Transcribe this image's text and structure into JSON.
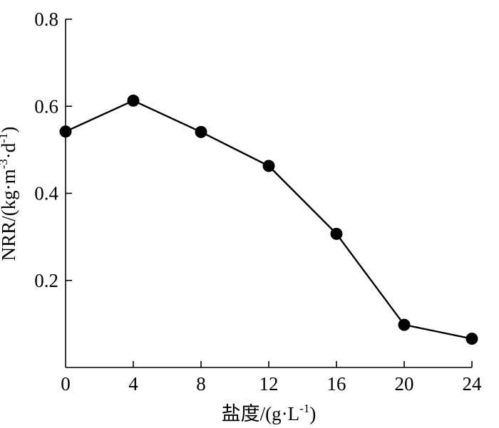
{
  "chart_data": {
    "type": "line",
    "title": "",
    "xlabel": {
      "prefix": "盐度/(g·L",
      "sup": "-1",
      "suffix": ")"
    },
    "ylabel": {
      "part1": "NRR/(kg·m",
      "sup1": "-3",
      "part2": "·d",
      "sup2": "-1",
      "part3": ")"
    },
    "xlim": [
      0,
      24
    ],
    "ylim": [
      0,
      0.8
    ],
    "xticks": [
      0,
      4,
      8,
      12,
      16,
      20,
      24
    ],
    "xtick_labels": [
      "0",
      "4",
      "8",
      "12",
      "16",
      "20",
      "24"
    ],
    "yticks": [
      0.2,
      0.4,
      0.6,
      0.8
    ],
    "ytick_labels": [
      "0.2",
      "0.4",
      "0.6",
      "0.8"
    ],
    "grid": false,
    "series": [
      {
        "x": [
          0,
          4,
          8,
          12,
          16,
          20,
          24
        ],
        "y": [
          0.542,
          0.613,
          0.541,
          0.463,
          0.307,
          0.098,
          0.066
        ],
        "color": "#000000",
        "marker": "filled-circle"
      }
    ]
  }
}
